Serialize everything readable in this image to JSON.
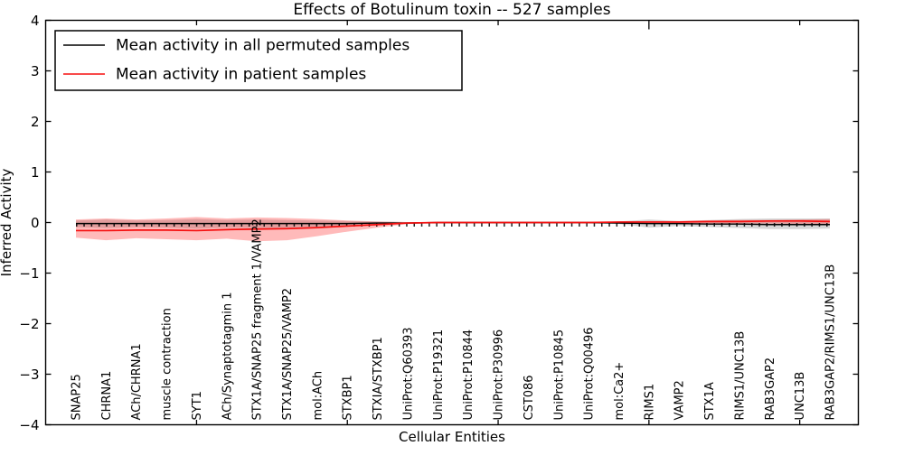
{
  "chart_data": {
    "type": "line",
    "title": "Effects of Botulinum toxin -- 527 samples",
    "xlabel": "Cellular Entities",
    "ylabel": "Inferred Activity",
    "ylim": [
      -4,
      4
    ],
    "grid": false,
    "legend_position": "upper-left",
    "legend": [
      {
        "label": "Mean activity in all permuted samples",
        "color": "#000000"
      },
      {
        "label": "Mean activity in patient samples",
        "color": "#f50f0f"
      }
    ],
    "yticks": [
      {
        "v": 4,
        "label": "4"
      },
      {
        "v": 3,
        "label": "3"
      },
      {
        "v": 2,
        "label": "2"
      },
      {
        "v": 1,
        "label": "1"
      },
      {
        "v": 0,
        "label": "0"
      },
      {
        "v": -1,
        "label": "−1"
      },
      {
        "v": -2,
        "label": "−2"
      },
      {
        "v": -3,
        "label": "−3"
      },
      {
        "v": -4,
        "label": "−4"
      }
    ],
    "x_major_tick_indices": [
      4,
      9,
      14,
      19,
      24
    ],
    "categories": [
      "SNAP25",
      "CHRNA1",
      "ACh/CHRNA1",
      "muscle contraction",
      "SYT1",
      "ACh/Synaptotagmin 1",
      "STX1A/SNAP25 fragment 1/VAMP2",
      "STX1A/SNAP25/VAMP2",
      "mol:ACh",
      "STXBP1",
      "STXIA/STXBP1",
      "UniProt:Q60393",
      "UniProt:P19321",
      "UniProt:P10844",
      "UniProt:P30996",
      "CST086",
      "UniProt:P10845",
      "UniProt:Q00496",
      "mol:Ca2+",
      "RIMS1",
      "VAMP2",
      "STX1A",
      "RIMS1/UNC13B",
      "RAB3GAP2",
      "UNC13B",
      "RAB3GAP2/RIMS1/UNC13B"
    ],
    "series": [
      {
        "name": "Mean activity in all permuted samples",
        "color": "#000000",
        "band_color": "#000000",
        "band_alpha": 0.16,
        "mean": [
          -0.02,
          -0.02,
          -0.02,
          -0.02,
          -0.02,
          -0.02,
          -0.02,
          -0.02,
          -0.02,
          -0.02,
          -0.01,
          -0.01,
          0,
          0,
          0,
          0,
          0,
          0,
          -0.01,
          -0.02,
          -0.02,
          -0.03,
          -0.03,
          -0.04,
          -0.04,
          -0.04
        ],
        "upper": [
          0.04,
          0.06,
          0.04,
          0.05,
          0.07,
          0.05,
          0.06,
          0.05,
          0.04,
          0.03,
          0.02,
          0.01,
          0.01,
          0.01,
          0.01,
          0.01,
          0.01,
          0.01,
          0.02,
          0.06,
          0.03,
          0.05,
          0.07,
          0.08,
          0.08,
          0.08
        ],
        "lower": [
          -0.09,
          -0.11,
          -0.09,
          -0.1,
          -0.12,
          -0.1,
          -0.11,
          -0.1,
          -0.08,
          -0.06,
          -0.05,
          -0.03,
          -0.02,
          -0.02,
          -0.02,
          -0.02,
          -0.02,
          -0.02,
          -0.03,
          -0.1,
          -0.07,
          -0.09,
          -0.11,
          -0.13,
          -0.13,
          -0.12
        ]
      },
      {
        "name": "Mean activity in patient samples",
        "color": "#f50f0f",
        "band_color": "#ff0000",
        "band_alpha": 0.27,
        "mean": [
          -0.16,
          -0.16,
          -0.15,
          -0.15,
          -0.16,
          -0.14,
          -0.13,
          -0.12,
          -0.1,
          -0.07,
          -0.04,
          -0.01,
          0,
          0,
          0,
          0,
          0,
          0,
          0.01,
          0.01,
          0.01,
          0.02,
          0.02,
          0.03,
          0.03,
          0.02
        ],
        "upper": [
          0.06,
          0.08,
          0.06,
          0.08,
          0.11,
          0.08,
          0.1,
          0.09,
          0.07,
          0.04,
          0.02,
          0.01,
          0.01,
          0.01,
          0.01,
          0.01,
          0.01,
          0.01,
          0.02,
          0.03,
          0.03,
          0.04,
          0.05,
          0.05,
          0.06,
          0.07
        ],
        "lower": [
          -0.3,
          -0.35,
          -0.31,
          -0.33,
          -0.35,
          -0.32,
          -0.37,
          -0.35,
          -0.27,
          -0.18,
          -0.1,
          -0.03,
          -0.01,
          -0.01,
          -0.01,
          -0.01,
          -0.01,
          -0.01,
          -0.02,
          -0.03,
          -0.02,
          -0.02,
          -0.02,
          -0.02,
          -0.03,
          -0.05
        ]
      }
    ],
    "zero_reference": {
      "style": "dense-vertical-dashes",
      "value": -0.045,
      "color": "#000000"
    }
  }
}
